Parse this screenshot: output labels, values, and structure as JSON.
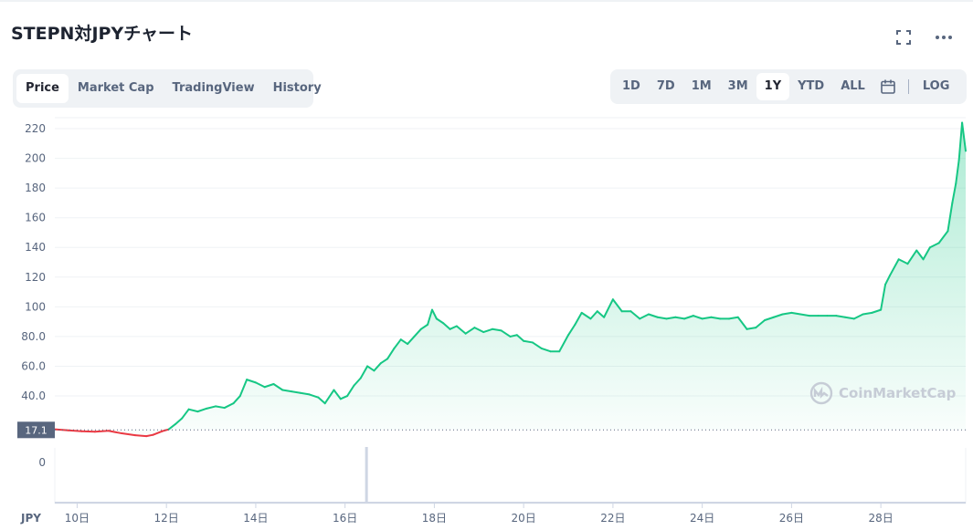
{
  "header": {
    "title": "STEPN対JPYチャート"
  },
  "icons": {
    "fullscreen": "fullscreen-icon",
    "more": "more-icon",
    "calendar": "calendar-icon"
  },
  "tabs": [
    {
      "label": "Price",
      "active": true
    },
    {
      "label": "Market Cap",
      "active": false
    },
    {
      "label": "TradingView",
      "active": false
    },
    {
      "label": "History",
      "active": false
    }
  ],
  "ranges": [
    {
      "label": "1D",
      "active": false
    },
    {
      "label": "7D",
      "active": false
    },
    {
      "label": "1M",
      "active": false
    },
    {
      "label": "3M",
      "active": false
    },
    {
      "label": "1Y",
      "active": true
    },
    {
      "label": "YTD",
      "active": false
    },
    {
      "label": "ALL",
      "active": false
    }
  ],
  "log_label": "LOG",
  "watermark": "CoinMarketCap",
  "colors": {
    "up": "#16c784",
    "down": "#ea3943",
    "grid": "#eff2f5",
    "axis_text": "#58667e",
    "price_tag_bg": "#58667e"
  },
  "chart_data": {
    "type": "area",
    "currency_label": "JPY",
    "yticks": [
      "220",
      "200",
      "180",
      "160",
      "140",
      "120",
      "100",
      "80.0",
      "60.0",
      "40.0"
    ],
    "ytick_values": [
      220,
      200,
      180,
      160,
      140,
      120,
      100,
      80,
      60,
      40
    ],
    "ylim": [
      5,
      228
    ],
    "xticks": [
      "10日",
      "12日",
      "14日",
      "16日",
      "18日",
      "20日",
      "22日",
      "24日",
      "26日",
      "28日"
    ],
    "xtick_days": [
      10,
      12,
      14,
      16,
      18,
      20,
      22,
      24,
      26,
      28
    ],
    "xlim": [
      9.5,
      29.9
    ],
    "reference_price": 17.1,
    "reference_label": "17.1",
    "volume_axis_label": "0",
    "series": [
      {
        "x": [
          9.5,
          9.8,
          10.1,
          10.4,
          10.7,
          11.0,
          11.3,
          11.55,
          11.7,
          11.9,
          12.05,
          12.2,
          12.35,
          12.5,
          12.7,
          12.9,
          13.1,
          13.3,
          13.5,
          13.65,
          13.8,
          14.0,
          14.2,
          14.4,
          14.6,
          14.8,
          15.0,
          15.2,
          15.4,
          15.55,
          15.75,
          15.9,
          16.05,
          16.2,
          16.35,
          16.5,
          16.65,
          16.8,
          16.95,
          17.1,
          17.25,
          17.4,
          17.55,
          17.7,
          17.85,
          17.95,
          18.05,
          18.2,
          18.35,
          18.5,
          18.7,
          18.9,
          19.1,
          19.3,
          19.5,
          19.7,
          19.85,
          20.0,
          20.2,
          20.4,
          20.6,
          20.8,
          21.0,
          21.15,
          21.3,
          21.5,
          21.65,
          21.8,
          22.0,
          22.2,
          22.4,
          22.6,
          22.8,
          23.0,
          23.2,
          23.4,
          23.6,
          23.8,
          24.0,
          24.2,
          24.4,
          24.6,
          24.8,
          25.0,
          25.2,
          25.4,
          25.6,
          25.8,
          26.0,
          26.2,
          26.4,
          26.6,
          26.8,
          27.0,
          27.2,
          27.4,
          27.6,
          27.8,
          28.0,
          28.1,
          28.2,
          28.4,
          28.6,
          28.8,
          28.95,
          29.1,
          29.3,
          29.5,
          29.6,
          29.68,
          29.75,
          29.82,
          29.9
        ],
        "y": [
          17.5,
          16.8,
          16.2,
          15.9,
          16.5,
          14.8,
          13.5,
          12.9,
          13.8,
          16.2,
          17.5,
          21,
          25,
          31,
          29.5,
          31.5,
          33,
          32,
          35,
          40,
          51,
          49,
          46,
          48,
          44,
          43,
          42,
          41,
          39,
          35,
          44,
          38,
          40,
          47,
          52,
          60,
          57,
          62,
          65,
          72,
          78,
          75,
          80,
          85,
          88,
          98,
          92,
          89,
          85,
          87,
          82,
          86,
          83,
          85,
          84,
          80,
          81,
          77,
          76,
          72,
          70,
          70,
          81,
          88,
          96,
          92,
          97,
          93,
          105,
          97,
          97,
          92,
          95,
          93,
          92,
          93,
          92,
          94,
          92,
          93,
          92,
          92,
          93,
          85,
          86,
          91,
          93,
          95,
          96,
          95,
          94,
          94,
          94,
          94,
          93,
          92,
          95,
          96,
          98,
          115,
          121,
          132,
          129,
          138,
          132,
          140,
          143,
          151,
          170,
          183,
          199,
          224,
          205
        ]
      }
    ]
  }
}
